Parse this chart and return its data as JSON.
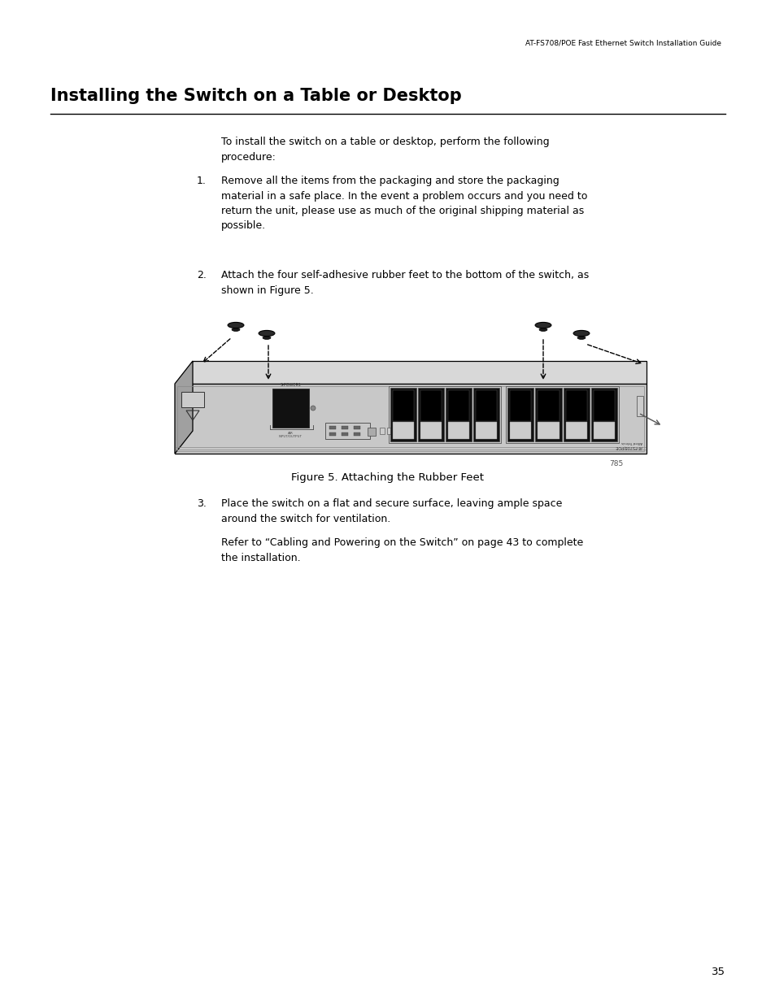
{
  "header_text": "AT-FS708/POE Fast Ethernet Switch Installation Guide",
  "title": "Installing the Switch on a Table or Desktop",
  "page_number": "35",
  "figure_number": "785",
  "figure_caption": "Figure 5. Attaching the Rubber Feet",
  "intro_text": "To install the switch on a table or desktop, perform the following\nprocedure:",
  "step1_num": "1.",
  "step1_text": "Remove all the items from the packaging and store the packaging\nmaterial in a safe place. In the event a problem occurs and you need to\nreturn the unit, please use as much of the original shipping material as\npossible.",
  "step2_num": "2.",
  "step2_text": "Attach the four self-adhesive rubber feet to the bottom of the switch, as\nshown in Figure 5.",
  "step3_num": "3.",
  "step3_text": "Place the switch on a flat and secure surface, leaving ample space\naround the switch for ventilation.",
  "step3_subtext": "Refer to “Cabling and Powering on the Switch” on page 43 to complete\nthe installation.",
  "bg_color": "#ffffff",
  "text_color": "#000000",
  "switch_top_color": "#d8d8d8",
  "switch_face_color": "#c8c8c8",
  "switch_side_color": "#a0a0a0",
  "switch_dark_color": "#1a1a1a",
  "rubber_foot_color": "#2a2a2a"
}
